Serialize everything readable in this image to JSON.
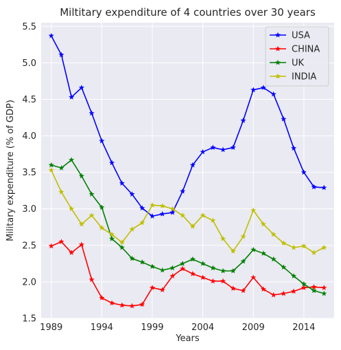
{
  "chart_data": {
    "type": "line",
    "title": "Miltitary expenditure of 4 countries over 30 years",
    "xlabel": "Years",
    "ylabel": "Military expenditure (% of GDP)",
    "xlim": [
      1988,
      2017
    ],
    "ylim": [
      1.5,
      5.55
    ],
    "x_ticks": [
      1989,
      1994,
      1999,
      2004,
      2009,
      2014
    ],
    "y_ticks": [
      "1.5",
      "2.0",
      "2.5",
      "3.0",
      "3.5",
      "4.0",
      "4.5",
      "5.0",
      "5.5"
    ],
    "grid": true,
    "legend_position": "top-right",
    "x": [
      1989,
      1990,
      1991,
      1992,
      1993,
      1994,
      1995,
      1996,
      1997,
      1998,
      1999,
      2000,
      2001,
      2002,
      2003,
      2004,
      2005,
      2006,
      2007,
      2008,
      2009,
      2010,
      2011,
      2012,
      2013,
      2014,
      2015,
      2016
    ],
    "series": [
      {
        "name": "USA",
        "color": "#0000ff",
        "values": [
          5.37,
          5.11,
          4.53,
          4.66,
          4.31,
          3.93,
          3.63,
          3.35,
          3.2,
          3.01,
          2.9,
          2.93,
          2.95,
          3.24,
          3.6,
          3.78,
          3.84,
          3.81,
          3.84,
          4.21,
          4.63,
          4.66,
          4.57,
          4.23,
          3.83,
          3.5,
          3.3,
          3.29
        ]
      },
      {
        "name": "CHINA",
        "color": "#ff0000",
        "values": [
          2.49,
          2.55,
          2.4,
          2.51,
          2.03,
          1.78,
          1.71,
          1.68,
          1.67,
          1.69,
          1.92,
          1.89,
          2.08,
          2.18,
          2.11,
          2.06,
          2.01,
          2.01,
          1.91,
          1.88,
          2.06,
          1.9,
          1.82,
          1.84,
          1.87,
          1.92,
          1.93,
          1.92
        ]
      },
      {
        "name": "UK",
        "color": "#008000",
        "values": [
          3.6,
          3.56,
          3.67,
          3.45,
          3.2,
          3.02,
          2.59,
          2.47,
          2.32,
          2.27,
          2.21,
          2.16,
          2.19,
          2.25,
          2.31,
          2.25,
          2.19,
          2.15,
          2.15,
          2.28,
          2.44,
          2.39,
          2.31,
          2.2,
          2.08,
          1.97,
          1.88,
          1.84
        ]
      },
      {
        "name": "INDIA",
        "color": "#bfbf00",
        "values": [
          3.53,
          3.23,
          3.0,
          2.79,
          2.91,
          2.74,
          2.65,
          2.54,
          2.72,
          2.81,
          3.05,
          3.04,
          3.0,
          2.91,
          2.76,
          2.91,
          2.84,
          2.59,
          2.42,
          2.62,
          2.98,
          2.79,
          2.65,
          2.53,
          2.47,
          2.49,
          2.4,
          2.47
        ]
      }
    ]
  }
}
